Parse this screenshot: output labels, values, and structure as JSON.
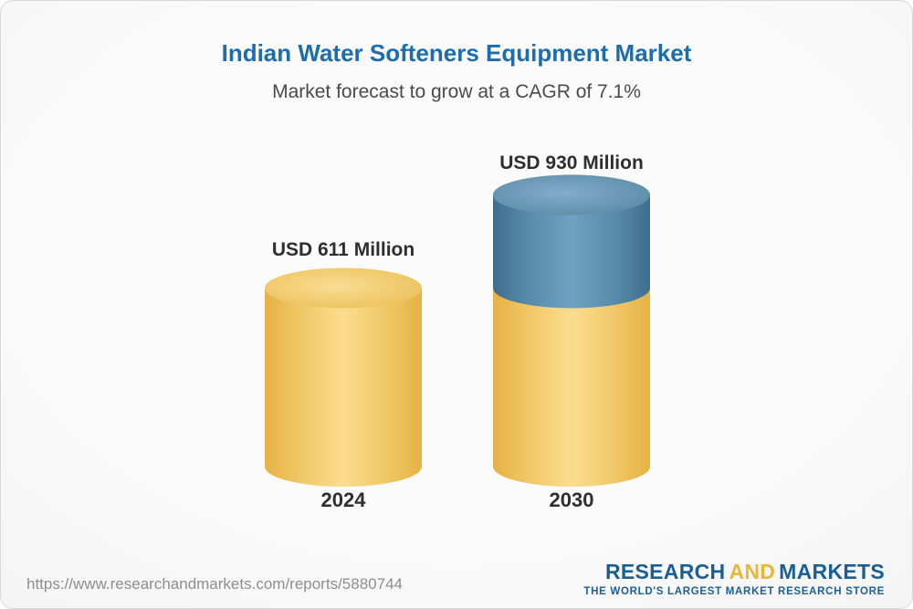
{
  "header": {
    "title": "Indian Water Softeners Equipment Market",
    "subtitle": "Market forecast to grow at a CAGR of 7.1%"
  },
  "chart_data": {
    "type": "bar",
    "bar_style": "3d-cylinder",
    "categories": [
      "2024",
      "2030"
    ],
    "values": [
      611,
      930
    ],
    "value_labels": [
      "USD 611 Million",
      "USD 930 Million"
    ],
    "title": "Indian Water Softeners Equipment Market",
    "subtitle": "Market forecast to grow at a CAGR of 7.1%",
    "xlabel": "",
    "ylabel": "",
    "ylim": [
      0,
      1000
    ],
    "grid": false,
    "legend": null,
    "base_value": 611,
    "growth_segment_value": 319,
    "colors": {
      "base_segment": "#F2C55C",
      "growth_segment": "#4C80A8",
      "title_text": "#1D6CAB",
      "label_text": "#2E2E2E"
    }
  },
  "footer": {
    "url": "https://www.researchandmarkets.com/reports/5880744",
    "logo": {
      "research": "RESEARCH",
      "and": "AND",
      "markets": "MARKETS",
      "tagline": "THE WORLD'S LARGEST MARKET RESEARCH STORE"
    }
  }
}
